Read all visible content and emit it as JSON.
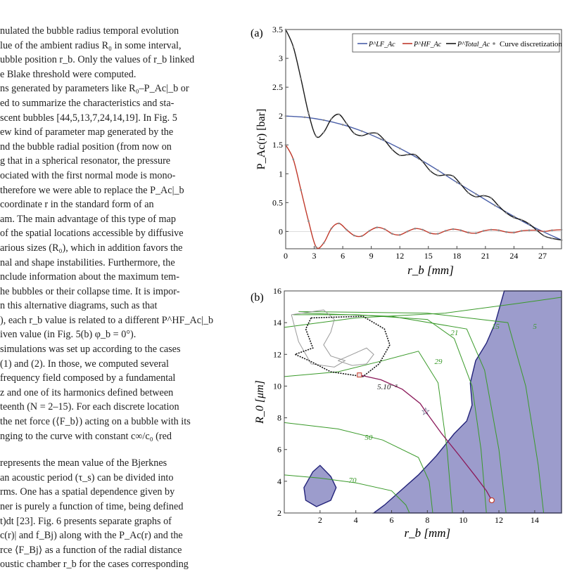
{
  "text_lines": [
    "nulated the bubble radius temporal evolution",
    "lue of the ambient radius R₀ in some interval,",
    "ubble position r_b. Only the values of r_b linked",
    "e Blake threshold were computed.",
    "ns generated by parameters like R₀–P_Ac|_b or",
    "ed to summarize the characteristics and sta-",
    "scent bubbles [44,5,13,7,24,14,19]. In Fig. 5",
    "ew kind of parameter map generated by the",
    "nd the bubble radial position (from now on",
    "g that in a spherical resonator, the pressure",
    "ociated with the first normal mode is mono-",
    "therefore we were able to replace the P_Ac|_b",
    "coordinate r in the standard form of an",
    "am. The main advantage of this type of map",
    "of the spatial locations accessible by diffusive",
    "arious sizes (R₀), which in addition favors the",
    "nal and shape instabilities. Furthermore, the",
    "nclude information about the maximum tem-",
    "he bubbles or their collapse time. It is impor-",
    "n this alternative diagrams, such as that",
    "), each r_b value is related to a different P^HF_Ac|_b",
    "iven value (in Fig. 5(b) φ_b = 0°).",
    "simulations was set up according to the cases",
    " (1) and (2). In those, we computed several",
    "frequency field composed by a fundamental",
    "z and one of its harmonics defined between",
    "teenth (N = 2–15). For each discrete location",
    "the net force (⟨F_b⟩) acting on a bubble with its",
    "nging to the curve with constant c∞/c₀ (red",
    "represents the mean value of the Bjerknes",
    "an acoustic period (τ_s) can be divided into",
    "rms. One has a spatial dependence given by",
    "ner is purely a function of time, being defined",
    "t)dt [23]. Fig. 6 presents separate graphs of",
    "c(r)| and f_Bj) along with the P_Ac(r) and the",
    "rce ⟨F_Bj⟩ as a function of the radial distance",
    "oustic chamber r_b for the cases corresponding"
  ],
  "chart_data": [
    {
      "type": "line",
      "panel_label": "(a)",
      "xlabel": "r_b [mm]",
      "ylabel": "P_Ac(r) [bar]",
      "xlim": [
        0,
        29
      ],
      "ylim": [
        -0.3,
        3.5
      ],
      "xticks": [
        "0",
        "3",
        "6",
        "9",
        "12",
        "15",
        "18",
        "21",
        "24",
        "27"
      ],
      "yticks": [
        "0",
        "0.5",
        "1",
        "1.5",
        "2",
        "2.5",
        "3",
        "3.5"
      ],
      "legend": [
        "P^LF_Ac",
        "P^HF_Ac",
        "P^Total_Ac",
        "Curve discretization"
      ],
      "legend_position": "top-right",
      "series": [
        {
          "name": "P^LF_Ac",
          "color": "#4a5fa8",
          "x": [
            0,
            2,
            4,
            6,
            8,
            10,
            12,
            14,
            16,
            18,
            20,
            22,
            24,
            26,
            29
          ],
          "y": [
            2.0,
            1.98,
            1.93,
            1.85,
            1.74,
            1.6,
            1.44,
            1.26,
            1.06,
            0.85,
            0.65,
            0.45,
            0.26,
            0.08,
            -0.15
          ]
        },
        {
          "name": "P^HF_Ac",
          "color": "#c0392b",
          "x": [
            0,
            0.8,
            1.6,
            2.4,
            3.2,
            4,
            4.8,
            5.6,
            6.4,
            7.2,
            8,
            8.8,
            9.6,
            10.4,
            11.2,
            12,
            12.8,
            13.6,
            14.4,
            15.2,
            16,
            16.8,
            17.6,
            18.4,
            19.2,
            20,
            20.8,
            21.6,
            22.4,
            23.2,
            24,
            24.8,
            25.6,
            26.4,
            27.2,
            28,
            29
          ],
          "y": [
            1.5,
            1.25,
            0.72,
            0.18,
            -0.27,
            -0.2,
            0.05,
            0.14,
            0.03,
            -0.07,
            -0.08,
            0.01,
            0.07,
            0.04,
            -0.04,
            -0.06,
            0.0,
            0.05,
            0.03,
            -0.03,
            -0.04,
            0.01,
            0.04,
            0.02,
            -0.02,
            -0.03,
            0.01,
            0.03,
            0.02,
            -0.01,
            -0.02,
            0.01,
            0.02,
            0.02,
            0.0,
            0.02,
            0.03
          ]
        },
        {
          "name": "P^Total_Ac",
          "color": "#1a1a1a",
          "x": [
            0,
            0.8,
            1.6,
            2.4,
            3.2,
            4,
            4.8,
            5.6,
            6.4,
            7.2,
            8,
            8.8,
            9.6,
            10.4,
            11.2,
            12,
            12.8,
            13.6,
            14.4,
            15.2,
            16,
            16.8,
            17.6,
            18.4,
            19.2,
            20,
            20.8,
            21.6,
            22.4,
            23.2,
            24,
            24.8,
            25.6,
            26.4,
            27.2,
            28,
            29
          ],
          "y": [
            3.5,
            3.2,
            2.65,
            2.05,
            1.65,
            1.72,
            1.95,
            2.03,
            1.87,
            1.7,
            1.66,
            1.7,
            1.7,
            1.58,
            1.42,
            1.32,
            1.33,
            1.33,
            1.21,
            1.05,
            0.97,
            0.98,
            0.96,
            0.82,
            0.67,
            0.6,
            0.62,
            0.58,
            0.44,
            0.32,
            0.24,
            0.2,
            0.13,
            0.02,
            -0.08,
            -0.12,
            -0.15
          ]
        }
      ]
    },
    {
      "type": "contour",
      "panel_label": "(b)",
      "xlabel": "r_b [mm]",
      "ylabel": "R_0 [μm]",
      "xlim": [
        0,
        15.5
      ],
      "ylim": [
        2,
        16
      ],
      "xticks": [
        "2",
        "4",
        "6",
        "8",
        "10",
        "12",
        "14"
      ],
      "yticks": [
        "2",
        "4",
        "6",
        "8",
        "10",
        "12",
        "14",
        "16"
      ],
      "contour_labels": [
        "21",
        "15",
        "5",
        "29",
        "5.10⁻³",
        "50",
        "70"
      ],
      "colors": {
        "shade": "#9c9ccc",
        "shade_edge": "#23237a",
        "contour": "#3a9a2a",
        "curve": "#8b1a5a"
      }
    }
  ]
}
